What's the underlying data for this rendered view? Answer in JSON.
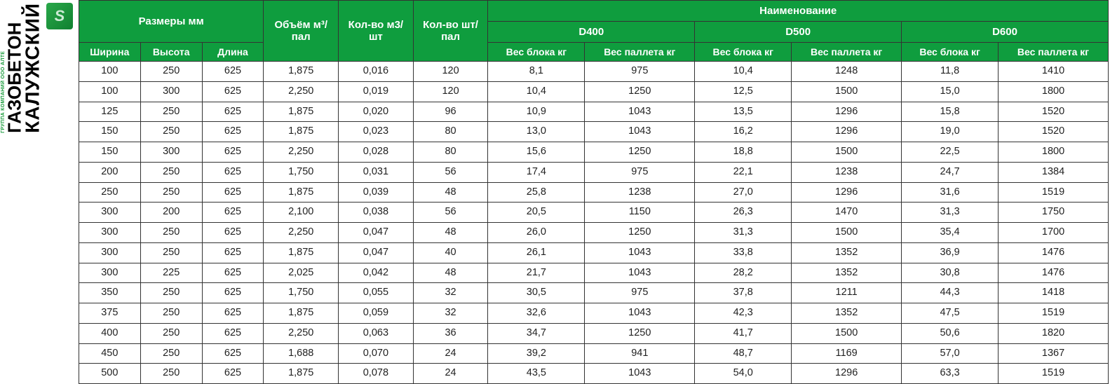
{
  "logo": {
    "main": "КАЛУЖСКИЙ",
    "sub": "ГАЗОБЕТОН",
    "tagline": "ГРУППА КОМПАНИЙ ООО АЛТЕ",
    "icon_glyph": "S"
  },
  "colors": {
    "header_bg": "#0f9d3e",
    "header_text": "#ffffff",
    "cell_bg": "#ffffff",
    "cell_text": "#222222",
    "border": "#333333"
  },
  "headers": {
    "naming": "Наименование",
    "dimensions": "Размеры мм",
    "volume_pal": "Объём м³/пал",
    "qty_m3": "Кол-во м3/шт",
    "qty_pcs_pal": "Кол-во шт/пал",
    "d400": "D400",
    "d500": "D500",
    "d600": "D600",
    "width": "Ширина",
    "height": "Высота",
    "length": "Длина",
    "block_weight": "Вес блока кг",
    "pallet_weight": "Вес паллета кг"
  },
  "rows": [
    [
      "100",
      "250",
      "625",
      "1,875",
      "0,016",
      "120",
      "8,1",
      "975",
      "10,4",
      "1248",
      "11,8",
      "1410"
    ],
    [
      "100",
      "300",
      "625",
      "2,250",
      "0,019",
      "120",
      "10,4",
      "1250",
      "12,5",
      "1500",
      "15,0",
      "1800"
    ],
    [
      "125",
      "250",
      "625",
      "1,875",
      "0,020",
      "96",
      "10,9",
      "1043",
      "13,5",
      "1296",
      "15,8",
      "1520"
    ],
    [
      "150",
      "250",
      "625",
      "1,875",
      "0,023",
      "80",
      "13,0",
      "1043",
      "16,2",
      "1296",
      "19,0",
      "1520"
    ],
    [
      "150",
      "300",
      "625",
      "2,250",
      "0,028",
      "80",
      "15,6",
      "1250",
      "18,8",
      "1500",
      "22,5",
      "1800"
    ],
    [
      "200",
      "250",
      "625",
      "1,750",
      "0,031",
      "56",
      "17,4",
      "975",
      "22,1",
      "1238",
      "24,7",
      "1384"
    ],
    [
      "250",
      "250",
      "625",
      "1,875",
      "0,039",
      "48",
      "25,8",
      "1238",
      "27,0",
      "1296",
      "31,6",
      "1519"
    ],
    [
      "300",
      "200",
      "625",
      "2,100",
      "0,038",
      "56",
      "20,5",
      "1150",
      "26,3",
      "1470",
      "31,3",
      "1750"
    ],
    [
      "300",
      "250",
      "625",
      "2,250",
      "0,047",
      "48",
      "26,0",
      "1250",
      "31,3",
      "1500",
      "35,4",
      "1700"
    ],
    [
      "300",
      "250",
      "625",
      "1,875",
      "0,047",
      "40",
      "26,1",
      "1043",
      "33,8",
      "1352",
      "36,9",
      "1476"
    ],
    [
      "300",
      "225",
      "625",
      "2,025",
      "0,042",
      "48",
      "21,7",
      "1043",
      "28,2",
      "1352",
      "30,8",
      "1476"
    ],
    [
      "350",
      "250",
      "625",
      "1,750",
      "0,055",
      "32",
      "30,5",
      "975",
      "37,8",
      "1211",
      "44,3",
      "1418"
    ],
    [
      "375",
      "250",
      "625",
      "1,875",
      "0,059",
      "32",
      "32,6",
      "1043",
      "42,3",
      "1352",
      "47,5",
      "1519"
    ],
    [
      "400",
      "250",
      "625",
      "2,250",
      "0,063",
      "36",
      "34,7",
      "1250",
      "41,7",
      "1500",
      "50,6",
      "1820"
    ],
    [
      "450",
      "250",
      "625",
      "1,688",
      "0,070",
      "24",
      "39,2",
      "941",
      "48,7",
      "1169",
      "57,0",
      "1367"
    ],
    [
      "500",
      "250",
      "625",
      "1,875",
      "0,078",
      "24",
      "43,5",
      "1043",
      "54,0",
      "1296",
      "63,3",
      "1519"
    ]
  ]
}
